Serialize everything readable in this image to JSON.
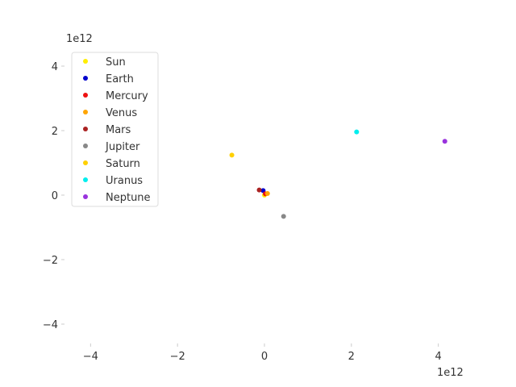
{
  "chart_data": {
    "type": "scatter",
    "title": "",
    "xlabel": "",
    "ylabel": "",
    "x_offset_text": "1e12",
    "y_offset_text": "1e12",
    "xlim": [
      -4.6,
      4.6
    ],
    "ylim": [
      -4.6,
      4.6
    ],
    "x_ticks": [
      -4,
      -2,
      0,
      2,
      4
    ],
    "x_tick_labels": [
      "−4",
      "−2",
      "0",
      "2",
      "4"
    ],
    "y_ticks": [
      -4,
      -2,
      0,
      2,
      4
    ],
    "y_tick_labels": [
      "−4",
      "−2",
      "0",
      "2",
      "4"
    ],
    "grid": false,
    "legend_position": "upper-left",
    "series": [
      {
        "name": "Sun",
        "color": "#ffee00",
        "points": [
          [
            0.0,
            0.0
          ]
        ]
      },
      {
        "name": "Earth",
        "color": "#0000cc",
        "points": [
          [
            -0.03,
            0.14
          ]
        ]
      },
      {
        "name": "Mercury",
        "color": "#ee1111",
        "points": [
          [
            0.02,
            0.04
          ]
        ]
      },
      {
        "name": "Venus",
        "color": "#ffa500",
        "points": [
          [
            0.07,
            0.05
          ]
        ]
      },
      {
        "name": "Mars",
        "color": "#aa2222",
        "points": [
          [
            -0.12,
            0.16
          ]
        ]
      },
      {
        "name": "Jupiter",
        "color": "#888888",
        "points": [
          [
            0.44,
            -0.66
          ]
        ]
      },
      {
        "name": "Saturn",
        "color": "#ffd000",
        "points": [
          [
            -0.75,
            1.24
          ]
        ]
      },
      {
        "name": "Uranus",
        "color": "#00eeee",
        "points": [
          [
            2.12,
            1.96
          ]
        ]
      },
      {
        "name": "Neptune",
        "color": "#9933dd",
        "points": [
          [
            4.15,
            1.67
          ]
        ]
      }
    ]
  }
}
